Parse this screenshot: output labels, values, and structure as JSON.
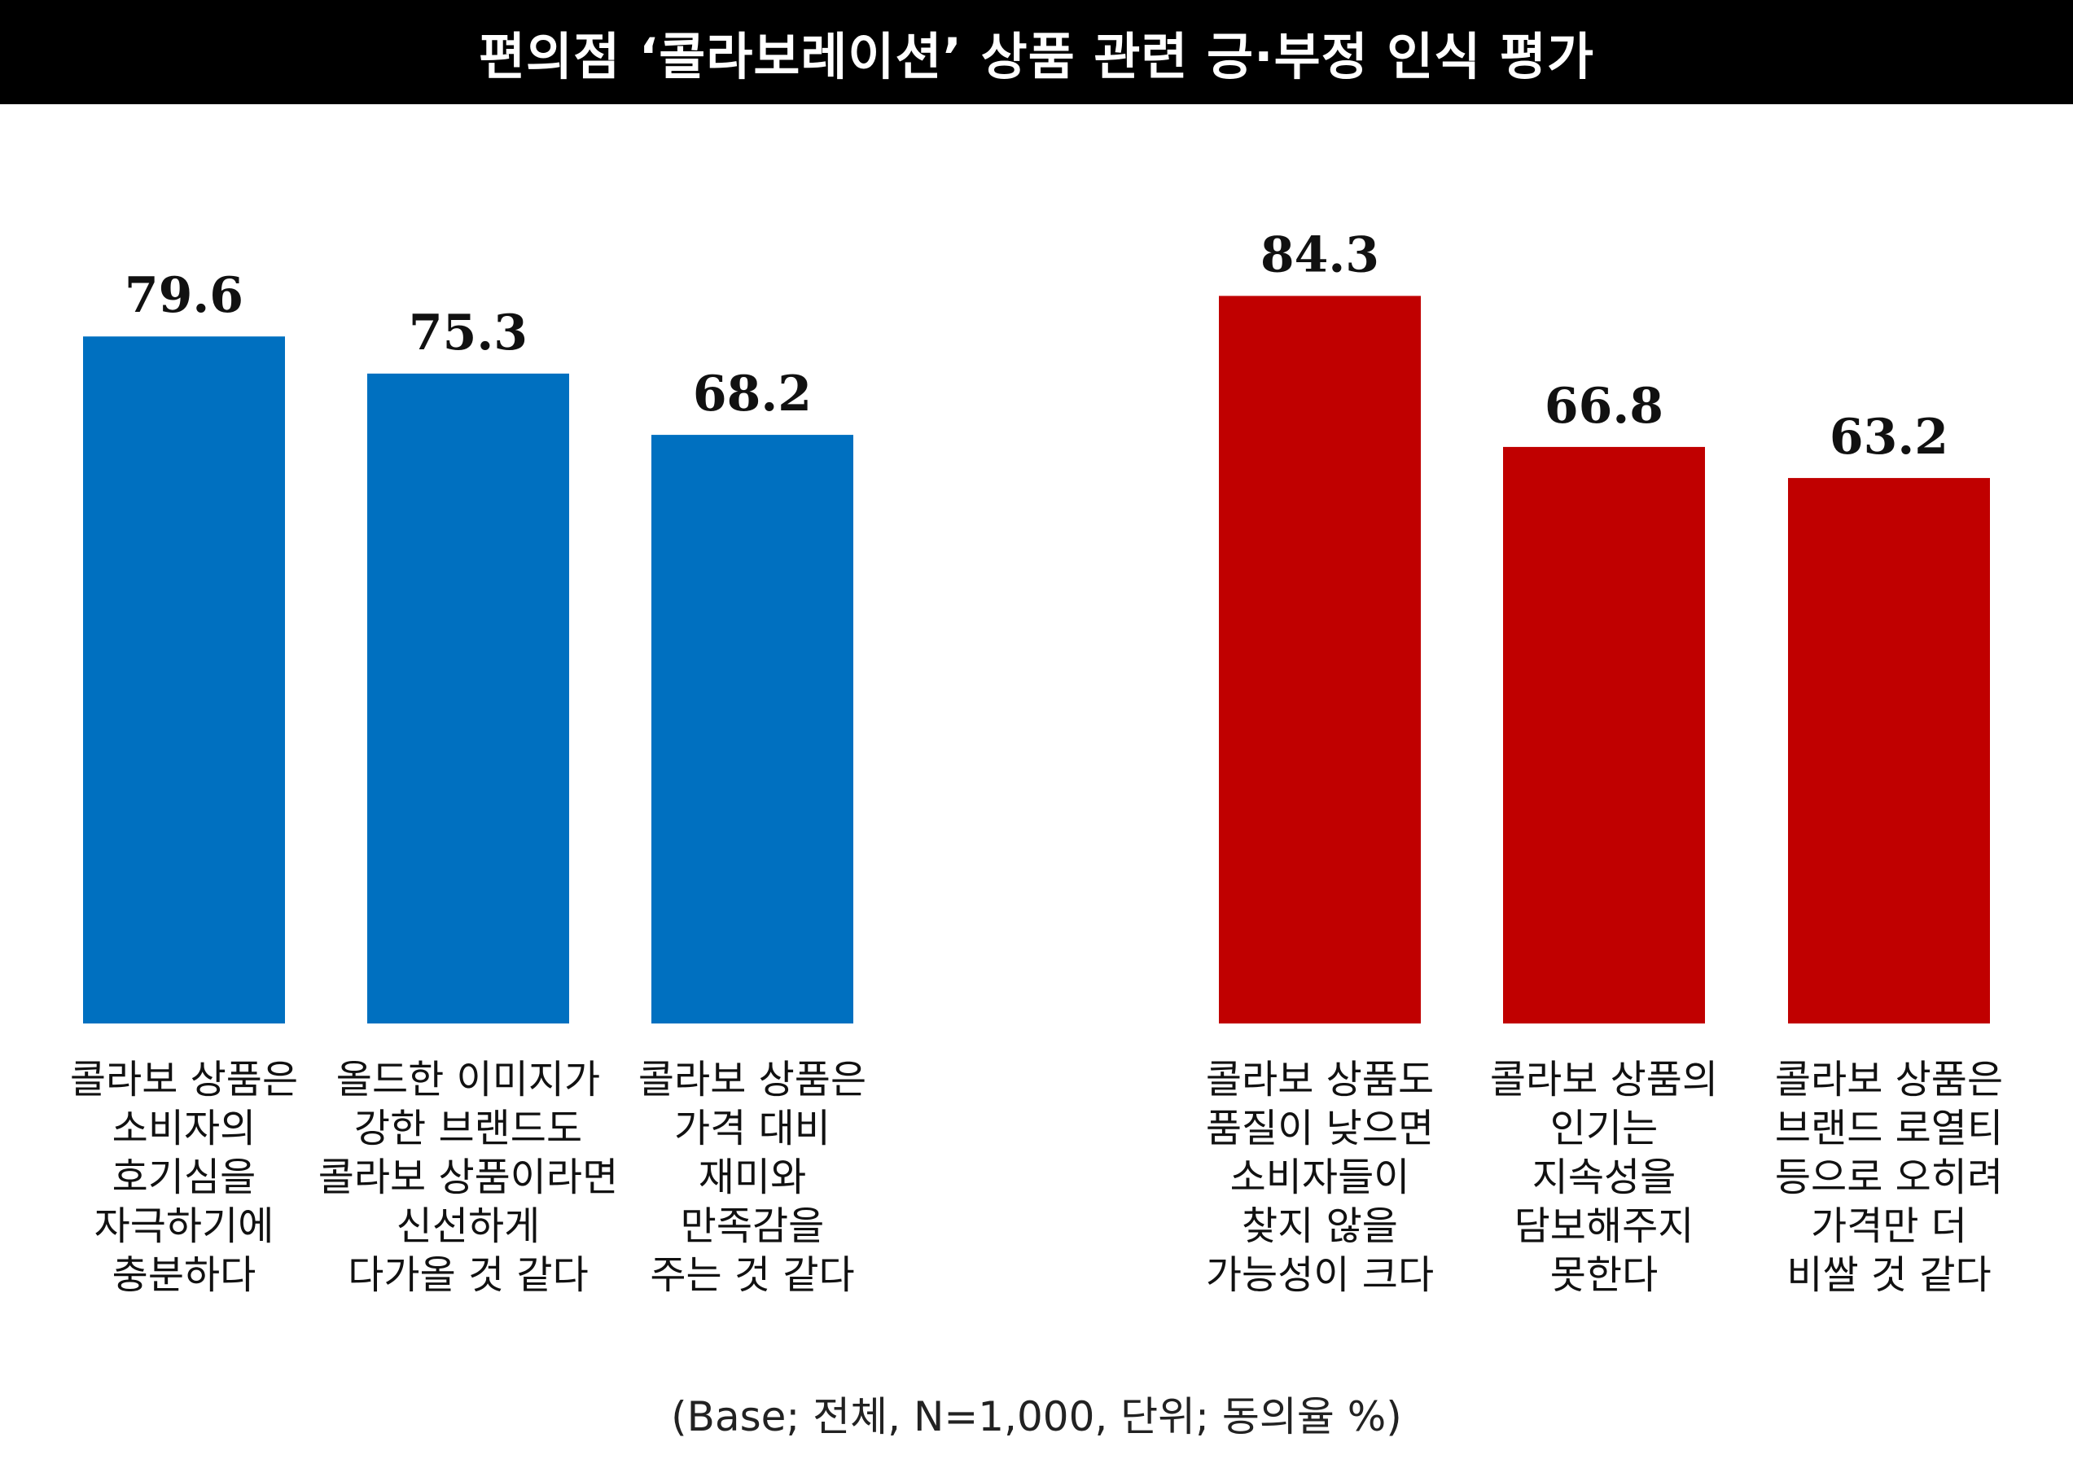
{
  "title": "편의점 ‘콜라보레이션’ 상품 관련 긍·부정 인식 평가",
  "footnote": "(Base; 전체, N=1,000, 단위; 동의율 %)",
  "colors": {
    "positive": "#0070C0",
    "negative": "#C00000",
    "title_bg": "#000000"
  },
  "chart_data": {
    "type": "bar",
    "title": "편의점 ‘콜라보레이션’ 상품 관련 긍·부정 인식 평가",
    "xlabel": "",
    "ylabel": "",
    "ylim": [
      0,
      100
    ],
    "grid": false,
    "categories": [
      "콜라보 상품은 소비자의 호기심을 자극하기에 충분하다",
      "올드한 이미지가 강한 브랜드도 콜라보 상품이라면 신선하게 다가올 것 같다",
      "콜라보 상품은 가격 대비 재미와 만족감을 주는 것 같다",
      "콜라보 상품도 품질이 낮으면 소비자들이 찾지 않을 가능성이 크다",
      "콜라보 상품의 인기는 지속성을 담보해주지 못한다",
      "콜라보 상품은 브랜드 로열티 등으로 오히려 가격만 더 비쌀 것 같다"
    ],
    "category_lines": [
      [
        "콜라보 상품은",
        "소비자의",
        "호기심을",
        "자극하기에",
        "충분하다"
      ],
      [
        "올드한 이미지가",
        "강한 브랜드도",
        "콜라보 상품이라면",
        "신선하게",
        "다가올 것 같다"
      ],
      [
        "콜라보 상품은",
        "가격 대비",
        "재미와",
        "만족감을",
        "주는 것 같다"
      ],
      [
        "콜라보 상품도",
        "품질이 낮으면",
        "소비자들이",
        "찾지 않을",
        "가능성이 크다"
      ],
      [
        "콜라보 상품의",
        "인기는",
        "지속성을",
        "담보해주지",
        "못한다"
      ],
      [
        "콜라보 상품은",
        "브랜드 로열티",
        "등으로 오히려",
        "가격만 더",
        "비쌀 것 같다"
      ]
    ],
    "values": [
      79.6,
      75.3,
      68.2,
      84.3,
      66.8,
      63.2
    ],
    "value_labels": [
      "79.6",
      "75.3",
      "68.2",
      "84.3",
      "66.8",
      "63.2"
    ],
    "bar_colors": [
      "#0070C0",
      "#0070C0",
      "#0070C0",
      "#C00000",
      "#C00000",
      "#C00000"
    ]
  }
}
